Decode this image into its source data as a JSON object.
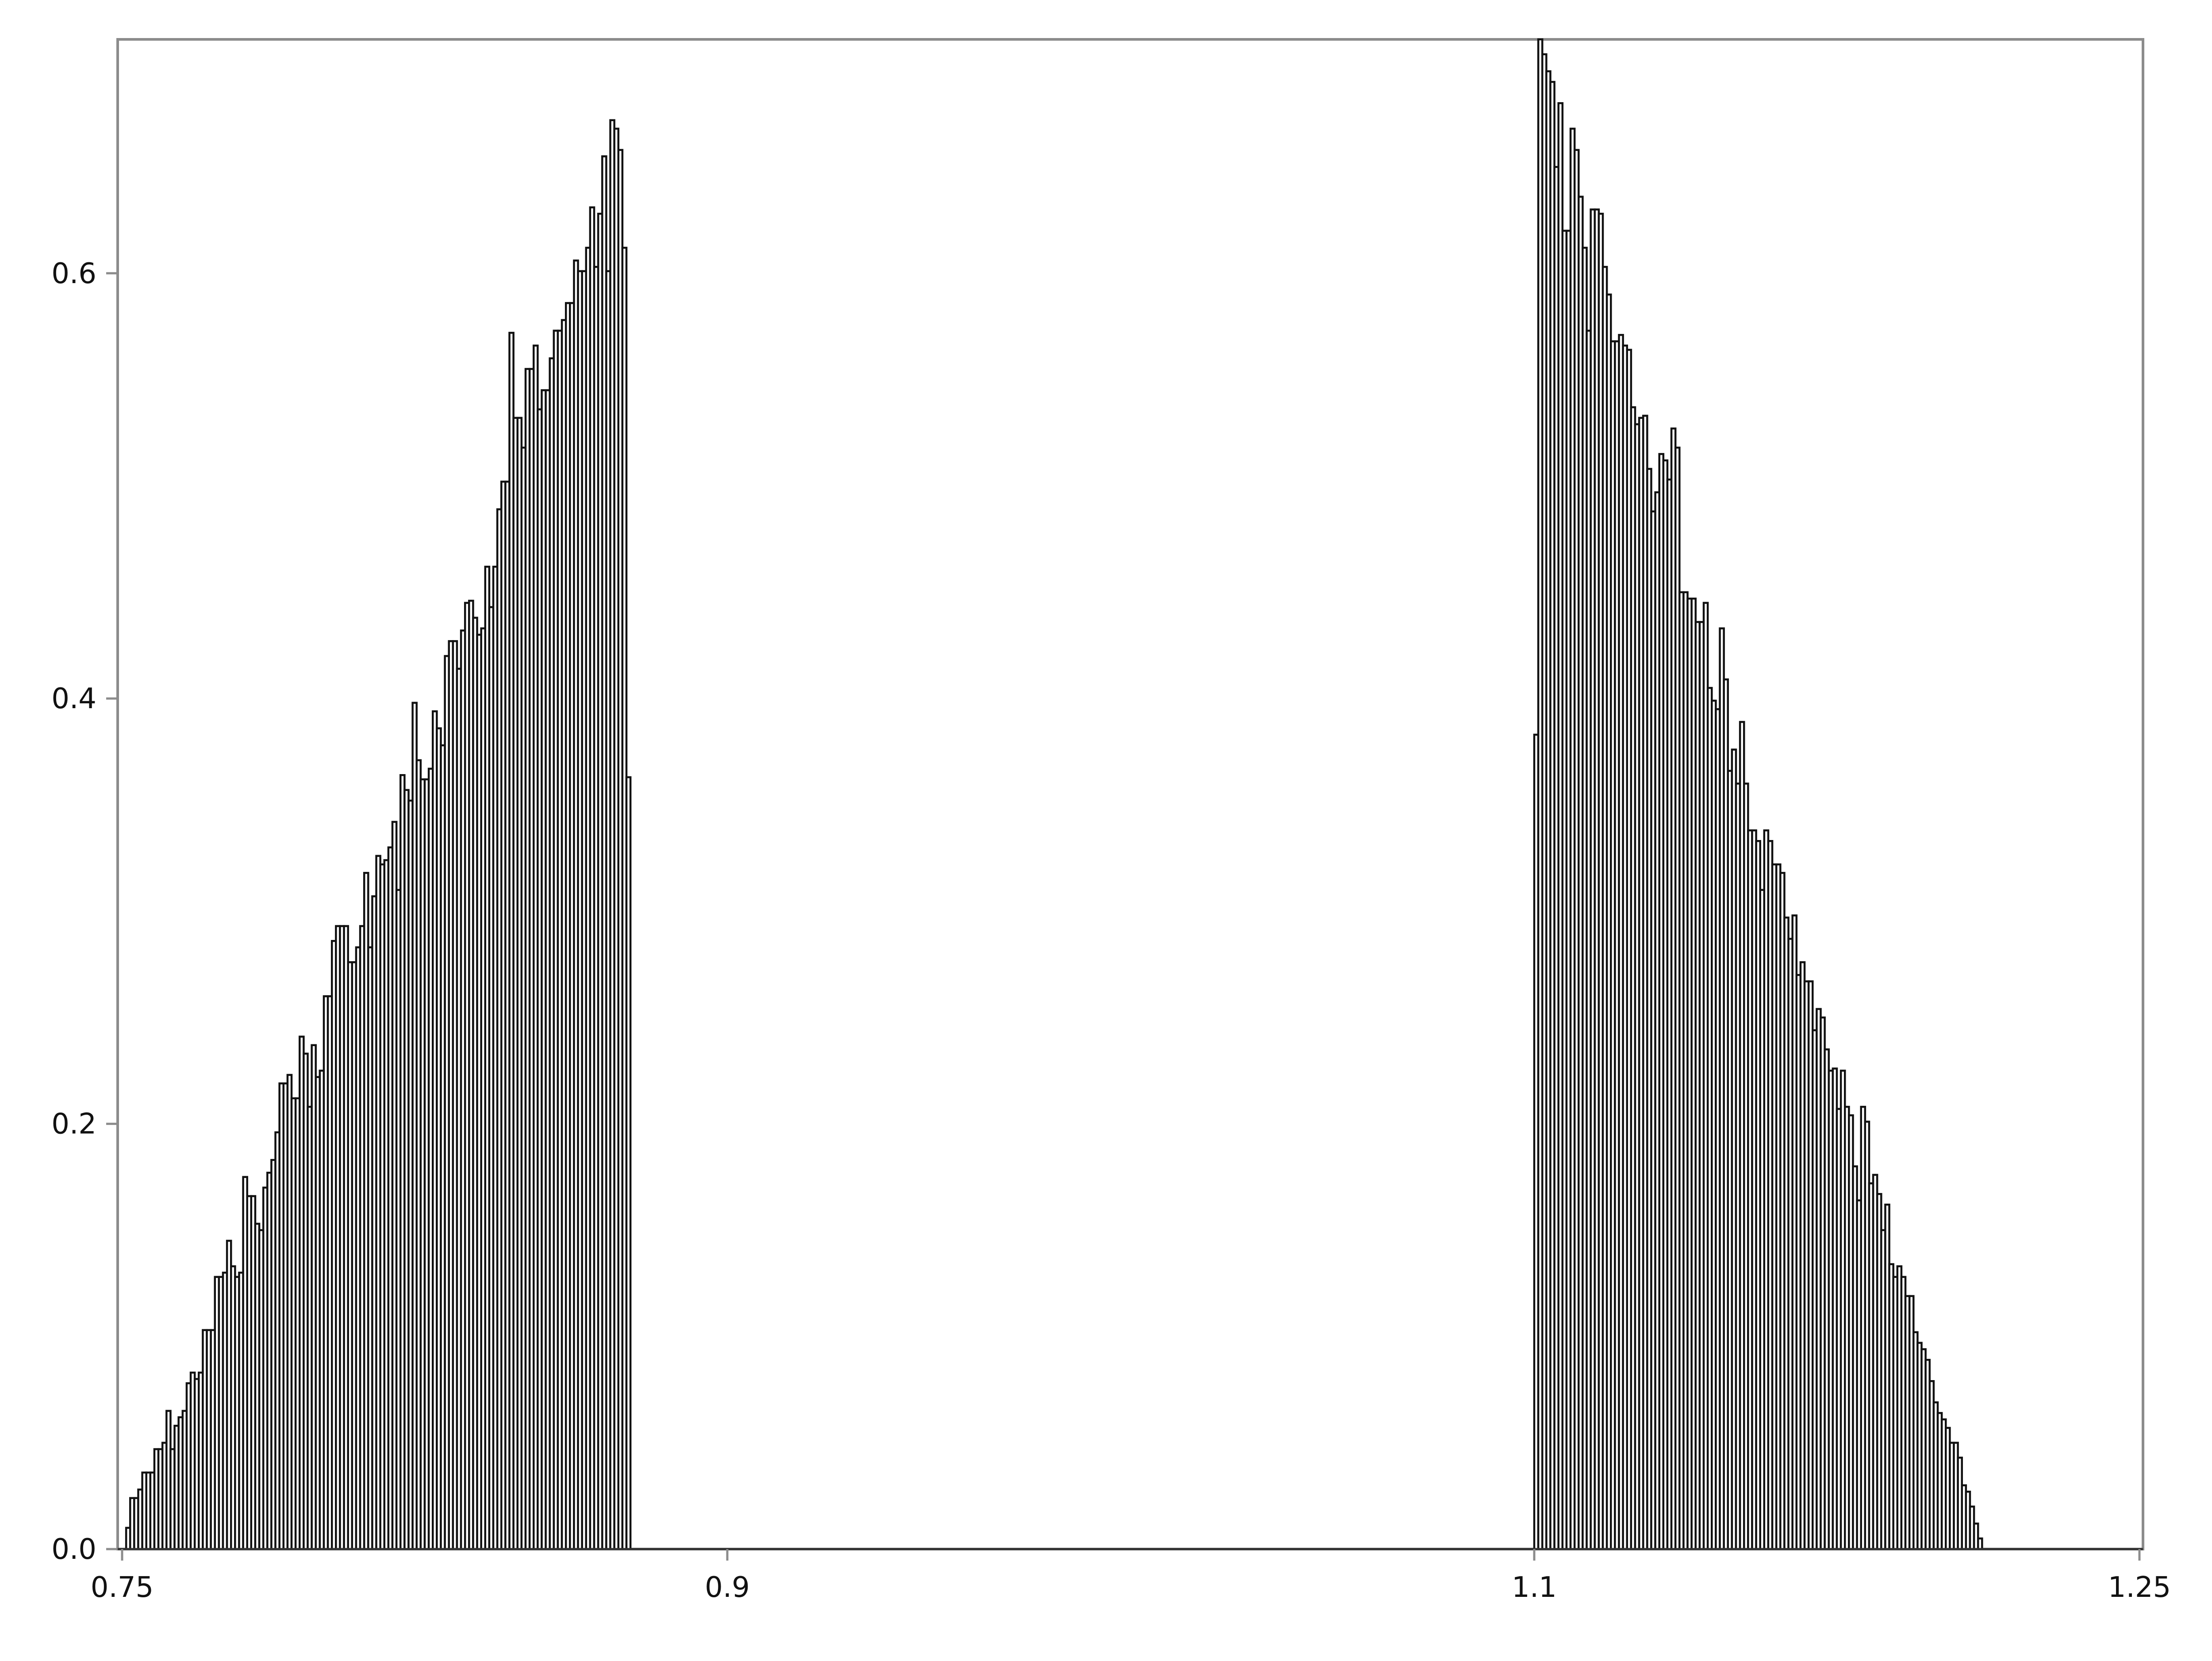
{
  "chart_data": {
    "type": "bar",
    "title": "",
    "xlabel": "",
    "ylabel": "",
    "xlim": [
      0.75,
      1.25
    ],
    "ylim": [
      0.0,
      0.71
    ],
    "xticks": [
      {
        "value": 0.75,
        "label": "0.75"
      },
      {
        "value": 0.9,
        "label": "0.9"
      },
      {
        "value": 1.1,
        "label": "1.1"
      },
      {
        "value": 1.25,
        "label": "1.25"
      }
    ],
    "yticks": [
      {
        "value": 0.0,
        "label": "0.0"
      },
      {
        "value": 0.2,
        "label": "0.2"
      },
      {
        "value": 0.4,
        "label": "0.4"
      },
      {
        "value": 0.6,
        "label": "0.6"
      }
    ],
    "grid": false,
    "legend": "none",
    "bar_color": "#ffffff",
    "edge_color": "#111111",
    "bin_width": 0.001,
    "series": [
      {
        "x_start": 0.75,
        "values": [
          0.0,
          0.01,
          0.024,
          0.024,
          0.028,
          0.036,
          0.036,
          0.036,
          0.047,
          0.047,
          0.05,
          0.065,
          0.047,
          0.058,
          0.062,
          0.065,
          0.078,
          0.083,
          0.08,
          0.083,
          0.103,
          0.103,
          0.103,
          0.128,
          0.128,
          0.13,
          0.145,
          0.133,
          0.128,
          0.13,
          0.175,
          0.166,
          0.166,
          0.153,
          0.15,
          0.17,
          0.177,
          0.183,
          0.196,
          0.219,
          0.219,
          0.223,
          0.212,
          0.212,
          0.241,
          0.233,
          0.208,
          0.237,
          0.222,
          0.225,
          0.26,
          0.26,
          0.286,
          0.293,
          0.293,
          0.293,
          0.276,
          0.276,
          0.283,
          0.293,
          0.318,
          0.283,
          0.307,
          0.326,
          0.322,
          0.324,
          0.33,
          0.342,
          0.31,
          0.364,
          0.357,
          0.352,
          0.398,
          0.371,
          0.362,
          0.362,
          0.367,
          0.394,
          0.386,
          0.378,
          0.42,
          0.427,
          0.427,
          0.414,
          0.432,
          0.445,
          0.446,
          0.438,
          0.43,
          0.433,
          0.462,
          0.443,
          0.462,
          0.489,
          0.502,
          0.502,
          0.572,
          0.532,
          0.532,
          0.518,
          0.555,
          0.555,
          0.566,
          0.536,
          0.545,
          0.545,
          0.56,
          0.573,
          0.573,
          0.578,
          0.586,
          0.586,
          0.606,
          0.601,
          0.601,
          0.612,
          0.631,
          0.603,
          0.628,
          0.655,
          0.601,
          0.672,
          0.668,
          0.658,
          0.612,
          0.363
        ]
      },
      {
        "x_start": 1.1,
        "values": [
          0.383,
          0.71,
          0.703,
          0.695,
          0.69,
          0.65,
          0.68,
          0.62,
          0.62,
          0.668,
          0.658,
          0.636,
          0.612,
          0.573,
          0.63,
          0.63,
          0.628,
          0.603,
          0.59,
          0.568,
          0.568,
          0.571,
          0.566,
          0.564,
          0.537,
          0.529,
          0.532,
          0.533,
          0.508,
          0.488,
          0.497,
          0.515,
          0.512,
          0.503,
          0.527,
          0.518,
          0.45,
          0.45,
          0.447,
          0.447,
          0.436,
          0.436,
          0.445,
          0.405,
          0.399,
          0.395,
          0.433,
          0.409,
          0.366,
          0.376,
          0.36,
          0.389,
          0.36,
          0.338,
          0.338,
          0.333,
          0.31,
          0.338,
          0.333,
          0.322,
          0.322,
          0.318,
          0.297,
          0.287,
          0.298,
          0.27,
          0.276,
          0.267,
          0.267,
          0.244,
          0.254,
          0.25,
          0.235,
          0.225,
          0.226,
          0.207,
          0.225,
          0.208,
          0.204,
          0.18,
          0.164,
          0.208,
          0.201,
          0.172,
          0.176,
          0.167,
          0.15,
          0.162,
          0.134,
          0.128,
          0.133,
          0.128,
          0.119,
          0.119,
          0.102,
          0.097,
          0.094,
          0.089,
          0.079,
          0.069,
          0.064,
          0.061,
          0.057,
          0.05,
          0.05,
          0.043,
          0.03,
          0.027,
          0.02,
          0.012,
          0.005
        ]
      }
    ]
  }
}
